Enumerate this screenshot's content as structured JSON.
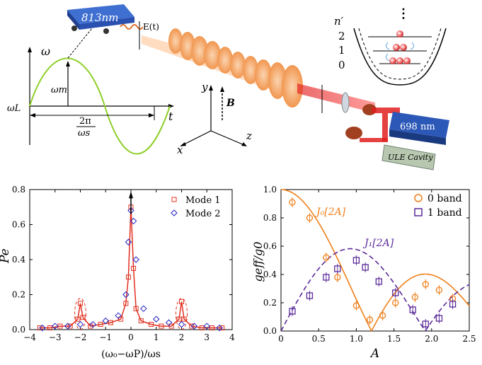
{
  "figure": {
    "panel_a": {
      "laser_813": "813nm",
      "efield": "E(t)",
      "laser_698": "698 nm",
      "cavity": "ULE Cavity",
      "omega_axis": "ω",
      "t_axis": "t",
      "omega_m": "ωm",
      "omega_L": "ωL",
      "period_num": "2π",
      "period_den": "ωs",
      "axis_y": "y",
      "axis_z": "z",
      "axis_x": "x",
      "bfield": "B",
      "nprime": "n′",
      "band_2": "2",
      "band_1": "1",
      "band_0": "0",
      "dots": "⋮"
    },
    "colors": {
      "orange": "#f07f1a",
      "purple": "#5b2a99",
      "red": "#e03020",
      "blue": "#2020c0",
      "green": "#8fd02a"
    }
  },
  "chart_data": [
    {
      "type": "line",
      "title": "",
      "xlabel": "(ω₀−ωP)/ωs",
      "ylabel": "Pe",
      "xlim": [
        -4,
        4
      ],
      "ylim": [
        0,
        0.8
      ],
      "xticks": [
        "−4",
        "−3",
        "−2",
        "−1",
        "0",
        "1",
        "2",
        "3",
        "4"
      ],
      "yticks": [
        "0.0",
        "0.2",
        "0.4",
        "0.6",
        "0.8"
      ],
      "legend": [
        "Mode 1",
        "Mode 2"
      ],
      "legend_position": "top-right",
      "series": [
        {
          "name": "Mode 1",
          "marker": "square",
          "color": "#e03020",
          "x": [
            -3.6,
            -3.2,
            -2.8,
            -2.4,
            -2.1,
            -2.0,
            -1.9,
            -1.6,
            -1.2,
            -0.8,
            -0.4,
            -0.2,
            -0.1,
            0.0,
            0.1,
            0.2,
            0.4,
            0.8,
            1.2,
            1.6,
            1.9,
            2.0,
            2.1,
            2.4,
            2.8,
            3.2,
            3.6
          ],
          "y": [
            0.01,
            0.01,
            0.02,
            0.02,
            0.06,
            0.15,
            0.07,
            0.02,
            0.03,
            0.04,
            0.06,
            0.15,
            0.3,
            0.7,
            0.35,
            0.12,
            0.05,
            0.03,
            0.02,
            0.02,
            0.06,
            0.16,
            0.06,
            0.02,
            0.01,
            0.01,
            0.01
          ]
        },
        {
          "name": "Mode 2",
          "marker": "diamond",
          "color": "#2020c0",
          "x": [
            -3.5,
            -3.0,
            -2.5,
            -2.0,
            -1.5,
            -1.0,
            -0.5,
            -0.2,
            -0.1,
            0.0,
            0.1,
            0.2,
            0.5,
            1.0,
            1.5,
            2.0,
            2.5,
            3.0,
            3.5
          ],
          "y": [
            0.01,
            0.02,
            0.02,
            0.03,
            0.03,
            0.05,
            0.08,
            0.2,
            0.5,
            0.68,
            0.62,
            0.4,
            0.12,
            0.06,
            0.04,
            0.03,
            0.02,
            0.02,
            0.01
          ]
        }
      ],
      "annotations": [
        "dashed ellipses around sidebands at −2 and +2",
        "arrow at 0"
      ]
    },
    {
      "type": "scatter",
      "title": "",
      "xlabel": "A",
      "ylabel": "geff/g0",
      "xlim": [
        0,
        2.5
      ],
      "ylim": [
        0,
        1.0
      ],
      "xticks": [
        "0",
        "0.5",
        "1.0",
        "1.5",
        "2.0",
        "2.5"
      ],
      "yticks": [
        "0.0",
        "0.2",
        "0.4",
        "0.6",
        "0.8",
        "1.0"
      ],
      "legend": [
        "0 band",
        "1 band"
      ],
      "legend_position": "top-right",
      "curves": [
        {
          "name": "J0[2A]",
          "label": "J₀[2A]",
          "style": "solid",
          "color": "#f07f1a"
        },
        {
          "name": "J1[2A]",
          "label": "J₁[2A]",
          "style": "dashed",
          "color": "#5b2a99"
        }
      ],
      "series": [
        {
          "name": "0 band",
          "marker": "circle",
          "color": "#f07f1a",
          "x": [
            0.15,
            0.38,
            0.6,
            0.75,
            1.0,
            1.18,
            1.35,
            1.52,
            1.78,
            1.92,
            2.1,
            2.28
          ],
          "y": [
            0.91,
            0.8,
            0.52,
            0.38,
            0.18,
            0.08,
            0.11,
            0.2,
            0.24,
            0.33,
            0.29,
            0.23
          ]
        },
        {
          "name": "1 band",
          "marker": "square",
          "color": "#5b2a99",
          "x": [
            0.15,
            0.38,
            0.6,
            0.75,
            1.0,
            1.12,
            1.3,
            1.52,
            1.75,
            1.92,
            2.1,
            2.28
          ],
          "y": [
            0.14,
            0.25,
            0.38,
            0.44,
            0.5,
            0.45,
            0.35,
            0.27,
            0.15,
            0.05,
            0.09,
            0.19
          ]
        }
      ]
    }
  ]
}
